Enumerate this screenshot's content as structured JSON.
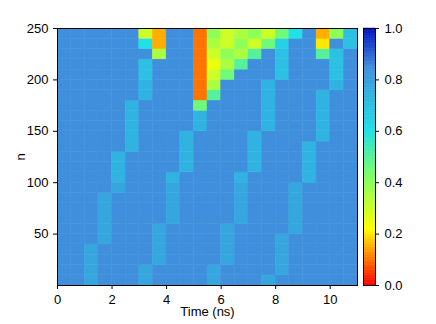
{
  "chart_data": {
    "type": "heatmap",
    "x_label": "Time (ns)",
    "y_label": "n",
    "x": [
      0.25,
      0.75,
      1.25,
      1.75,
      2.25,
      2.75,
      3.25,
      3.75,
      4.25,
      4.75,
      5.25,
      5.75,
      6.25,
      6.75,
      7.25,
      7.75,
      8.25,
      8.75,
      9.25,
      9.75,
      10.25,
      10.75
    ],
    "y": [
      5,
      15,
      25,
      35,
      45,
      55,
      65,
      75,
      85,
      95,
      105,
      115,
      125,
      135,
      145,
      155,
      165,
      175,
      185,
      195,
      205,
      215,
      225,
      235,
      245
    ],
    "values": [
      [
        0.85,
        0.85,
        0.78,
        0.85,
        0.85,
        0.85,
        0.78,
        0.85,
        0.85,
        0.85,
        0.85,
        0.78,
        0.85,
        0.85,
        0.85,
        0.78,
        0.85,
        0.85,
        0.85,
        0.85,
        0.85,
        0.85
      ],
      [
        0.85,
        0.85,
        0.78,
        0.85,
        0.85,
        0.85,
        0.78,
        0.85,
        0.85,
        0.85,
        0.85,
        0.78,
        0.85,
        0.85,
        0.85,
        0.85,
        0.78,
        0.85,
        0.85,
        0.85,
        0.85,
        0.85
      ],
      [
        0.85,
        0.85,
        0.78,
        0.85,
        0.85,
        0.85,
        0.85,
        0.78,
        0.85,
        0.85,
        0.85,
        0.85,
        0.78,
        0.85,
        0.85,
        0.85,
        0.78,
        0.85,
        0.85,
        0.85,
        0.85,
        0.85
      ],
      [
        0.85,
        0.85,
        0.78,
        0.85,
        0.85,
        0.85,
        0.85,
        0.78,
        0.85,
        0.85,
        0.85,
        0.85,
        0.78,
        0.85,
        0.85,
        0.85,
        0.78,
        0.85,
        0.85,
        0.85,
        0.85,
        0.85
      ],
      [
        0.85,
        0.85,
        0.85,
        0.78,
        0.85,
        0.85,
        0.85,
        0.78,
        0.85,
        0.85,
        0.85,
        0.85,
        0.78,
        0.85,
        0.85,
        0.85,
        0.78,
        0.85,
        0.85,
        0.85,
        0.85,
        0.85
      ],
      [
        0.85,
        0.85,
        0.85,
        0.78,
        0.85,
        0.85,
        0.85,
        0.78,
        0.85,
        0.85,
        0.85,
        0.85,
        0.78,
        0.85,
        0.85,
        0.85,
        0.85,
        0.78,
        0.85,
        0.85,
        0.85,
        0.85
      ],
      [
        0.85,
        0.85,
        0.85,
        0.78,
        0.85,
        0.85,
        0.85,
        0.85,
        0.78,
        0.85,
        0.85,
        0.85,
        0.85,
        0.78,
        0.85,
        0.85,
        0.85,
        0.78,
        0.85,
        0.85,
        0.85,
        0.85
      ],
      [
        0.85,
        0.85,
        0.85,
        0.78,
        0.85,
        0.85,
        0.85,
        0.85,
        0.78,
        0.85,
        0.85,
        0.85,
        0.85,
        0.78,
        0.85,
        0.85,
        0.85,
        0.78,
        0.85,
        0.85,
        0.85,
        0.85
      ],
      [
        0.85,
        0.85,
        0.85,
        0.78,
        0.85,
        0.85,
        0.85,
        0.85,
        0.78,
        0.85,
        0.85,
        0.85,
        0.85,
        0.78,
        0.85,
        0.85,
        0.85,
        0.78,
        0.85,
        0.85,
        0.85,
        0.85
      ],
      [
        0.85,
        0.85,
        0.85,
        0.85,
        0.78,
        0.85,
        0.85,
        0.85,
        0.78,
        0.85,
        0.85,
        0.85,
        0.85,
        0.78,
        0.85,
        0.85,
        0.85,
        0.78,
        0.85,
        0.85,
        0.85,
        0.85
      ],
      [
        0.85,
        0.85,
        0.85,
        0.85,
        0.74,
        0.85,
        0.85,
        0.85,
        0.74,
        0.85,
        0.85,
        0.85,
        0.85,
        0.74,
        0.85,
        0.85,
        0.85,
        0.85,
        0.74,
        0.85,
        0.85,
        0.85
      ],
      [
        0.85,
        0.85,
        0.85,
        0.85,
        0.74,
        0.85,
        0.85,
        0.85,
        0.85,
        0.74,
        0.85,
        0.85,
        0.85,
        0.85,
        0.74,
        0.85,
        0.85,
        0.85,
        0.74,
        0.85,
        0.85,
        0.85
      ],
      [
        0.85,
        0.85,
        0.85,
        0.85,
        0.74,
        0.85,
        0.85,
        0.85,
        0.85,
        0.74,
        0.85,
        0.85,
        0.85,
        0.85,
        0.74,
        0.85,
        0.85,
        0.85,
        0.74,
        0.85,
        0.85,
        0.85
      ],
      [
        0.85,
        0.85,
        0.85,
        0.85,
        0.85,
        0.74,
        0.85,
        0.85,
        0.85,
        0.74,
        0.85,
        0.85,
        0.85,
        0.85,
        0.74,
        0.85,
        0.85,
        0.85,
        0.74,
        0.85,
        0.85,
        0.85
      ],
      [
        0.85,
        0.85,
        0.85,
        0.85,
        0.85,
        0.74,
        0.85,
        0.85,
        0.85,
        0.74,
        0.85,
        0.85,
        0.85,
        0.85,
        0.74,
        0.85,
        0.85,
        0.85,
        0.85,
        0.74,
        0.85,
        0.85
      ],
      [
        0.85,
        0.85,
        0.85,
        0.85,
        0.85,
        0.74,
        0.85,
        0.85,
        0.85,
        0.85,
        0.74,
        0.85,
        0.85,
        0.85,
        0.85,
        0.74,
        0.85,
        0.85,
        0.85,
        0.74,
        0.85,
        0.85
      ],
      [
        0.85,
        0.85,
        0.85,
        0.85,
        0.85,
        0.74,
        0.85,
        0.85,
        0.85,
        0.85,
        0.74,
        0.85,
        0.85,
        0.85,
        0.85,
        0.74,
        0.85,
        0.85,
        0.85,
        0.74,
        0.85,
        0.85
      ],
      [
        0.85,
        0.85,
        0.85,
        0.85,
        0.85,
        0.74,
        0.85,
        0.85,
        0.85,
        0.85,
        0.45,
        0.85,
        0.85,
        0.85,
        0.85,
        0.74,
        0.85,
        0.85,
        0.85,
        0.74,
        0.85,
        0.85
      ],
      [
        0.85,
        0.85,
        0.85,
        0.85,
        0.85,
        0.85,
        0.74,
        0.85,
        0.85,
        0.85,
        0.1,
        0.5,
        0.85,
        0.85,
        0.85,
        0.74,
        0.85,
        0.85,
        0.85,
        0.74,
        0.85,
        0.85
      ],
      [
        0.85,
        0.85,
        0.85,
        0.85,
        0.85,
        0.85,
        0.74,
        0.85,
        0.85,
        0.85,
        0.1,
        0.35,
        0.85,
        0.85,
        0.85,
        0.74,
        0.85,
        0.85,
        0.85,
        0.85,
        0.74,
        0.85
      ],
      [
        0.85,
        0.85,
        0.85,
        0.85,
        0.85,
        0.85,
        0.7,
        0.85,
        0.85,
        0.85,
        0.1,
        0.3,
        0.45,
        0.85,
        0.85,
        0.85,
        0.7,
        0.85,
        0.85,
        0.85,
        0.7,
        0.85
      ],
      [
        0.85,
        0.85,
        0.85,
        0.85,
        0.85,
        0.85,
        0.7,
        0.85,
        0.85,
        0.85,
        0.1,
        0.25,
        0.35,
        0.5,
        0.85,
        0.85,
        0.7,
        0.85,
        0.85,
        0.85,
        0.7,
        0.85
      ],
      [
        0.85,
        0.85,
        0.85,
        0.85,
        0.85,
        0.85,
        0.85,
        0.35,
        0.85,
        0.85,
        0.1,
        0.3,
        0.4,
        0.35,
        0.5,
        0.85,
        0.7,
        0.85,
        0.85,
        0.5,
        0.7,
        0.85
      ],
      [
        0.85,
        0.85,
        0.85,
        0.85,
        0.85,
        0.85,
        0.6,
        0.15,
        0.85,
        0.85,
        0.1,
        0.35,
        0.3,
        0.4,
        0.3,
        0.45,
        0.65,
        0.85,
        0.85,
        0.2,
        0.85,
        0.7
      ],
      [
        0.85,
        0.85,
        0.85,
        0.85,
        0.85,
        0.85,
        0.3,
        0.15,
        0.85,
        0.85,
        0.1,
        0.4,
        0.3,
        0.35,
        0.4,
        0.3,
        0.45,
        0.6,
        0.85,
        0.15,
        0.4,
        0.7
      ]
    ],
    "xlim": [
      0,
      11
    ],
    "ylim": [
      0,
      250
    ],
    "xticks": [
      0,
      2,
      4,
      6,
      8,
      10
    ],
    "yticks": [
      50,
      100,
      150,
      200,
      250
    ],
    "colorbar": {
      "lim": [
        0,
        1
      ],
      "ticks": [
        0,
        0.2,
        0.4,
        0.6,
        0.8,
        1
      ]
    }
  }
}
